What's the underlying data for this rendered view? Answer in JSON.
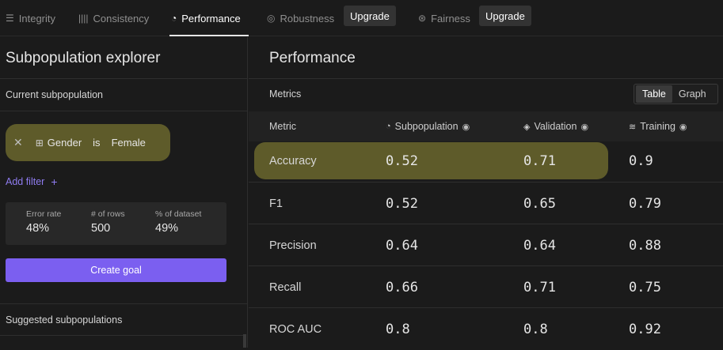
{
  "nav": {
    "tabs": [
      {
        "icon": "☰",
        "label": "Integrity"
      },
      {
        "icon": "||||",
        "label": "Consistency"
      },
      {
        "icon": "◔",
        "label": "Performance"
      },
      {
        "icon": "◎",
        "label": "Robustness"
      },
      {
        "icon": "⊛",
        "label": "Fairness"
      }
    ],
    "upgrade_label": "Upgrade",
    "active_tab": "Performance"
  },
  "left": {
    "title": "Subpopulation explorer",
    "current_label": "Current subpopulation",
    "filter": {
      "field": "Gender",
      "operator": "is",
      "value": "Female"
    },
    "add_filter_label": "Add filter",
    "stats": [
      {
        "label": "Error rate",
        "value": "48%"
      },
      {
        "label": "# of rows",
        "value": "500"
      },
      {
        "label": "% of dataset",
        "value": "49%"
      }
    ],
    "create_goal_label": "Create goal",
    "suggested_label": "Suggested subpopulations"
  },
  "right": {
    "title": "Performance",
    "metrics_label": "Metrics",
    "view_toggle": {
      "options": [
        "Table",
        "Graph"
      ],
      "selected": "Table"
    },
    "columns": {
      "metric": "Metric",
      "subpopulation": "Subpopulation",
      "validation": "Validation",
      "training": "Training"
    },
    "rows": [
      {
        "metric": "Accuracy",
        "subpopulation": "0.52",
        "validation": "0.71",
        "training": "0.9"
      },
      {
        "metric": "F1",
        "subpopulation": "0.52",
        "validation": "0.65",
        "training": "0.79"
      },
      {
        "metric": "Precision",
        "subpopulation": "0.64",
        "validation": "0.64",
        "training": "0.88"
      },
      {
        "metric": "Recall",
        "subpopulation": "0.66",
        "validation": "0.71",
        "training": "0.75"
      },
      {
        "metric": "ROC AUC",
        "subpopulation": "0.8",
        "validation": "0.8",
        "training": "0.92"
      }
    ]
  },
  "colors": {
    "background": "#1b1b1b",
    "highlight": "#5e5b2a",
    "accent": "#7b5ff0",
    "link": "#8f7cf0"
  }
}
